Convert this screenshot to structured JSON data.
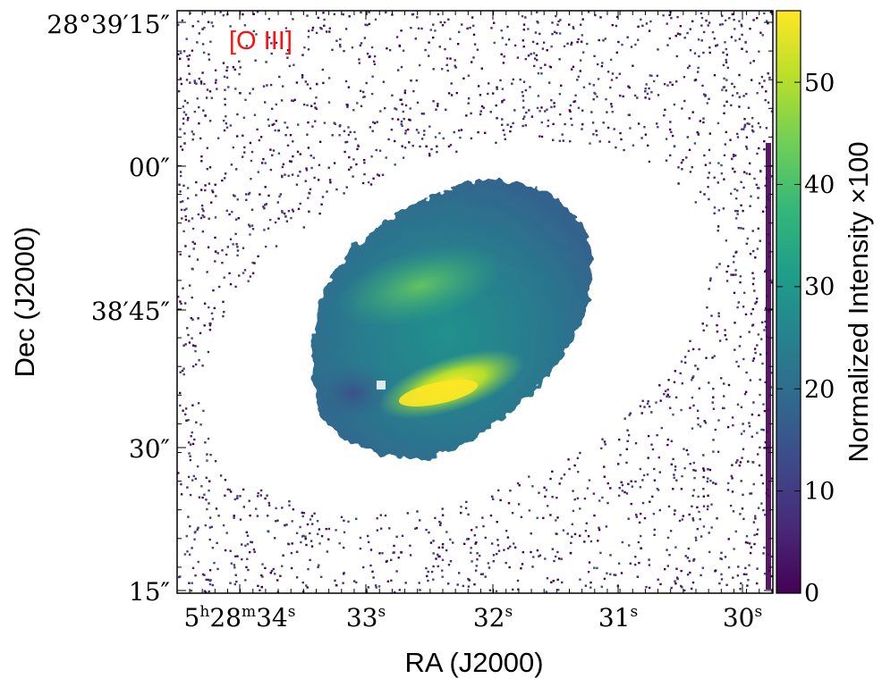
{
  "chart_data": {
    "type": "heatmap",
    "title": "",
    "annotation": "[O III]",
    "annotation_color": "#ff1010",
    "xlabel": "RA (J2000)",
    "ylabel": "Dec (J2000)",
    "x_ticks": [
      {
        "base": "5",
        "s1": "h",
        "mid": "28",
        "s2": "m",
        "tail": "34",
        "s3": "s"
      },
      {
        "base": "33",
        "s1": "s"
      },
      {
        "base": "32",
        "s1": "s"
      },
      {
        "base": "31",
        "s1": "s"
      },
      {
        "base": "30",
        "s1": "s"
      }
    ],
    "y_ticks": [
      "15″",
      "30″",
      "38′45″",
      "00″",
      "28°39′15″"
    ],
    "colorbar": {
      "label": "Normalized Intensity ×100",
      "colormap": "viridis",
      "range": [
        0,
        57
      ],
      "ticks": [
        "0",
        "10",
        "20",
        "30",
        "40",
        "50"
      ],
      "tick_values": [
        0,
        10,
        20,
        30,
        40,
        50
      ]
    },
    "colormap_stops": [
      "#440154",
      "#482878",
      "#3e4989",
      "#31688e",
      "#26828e",
      "#1f9e89",
      "#35b779",
      "#6ece58",
      "#b5de2b",
      "#fde725"
    ],
    "nebula": {
      "description_values": "elliptical [O III] emission region with bright arc at lower-center",
      "peak_intensity": 57,
      "typical_intensity": 30
    }
  }
}
